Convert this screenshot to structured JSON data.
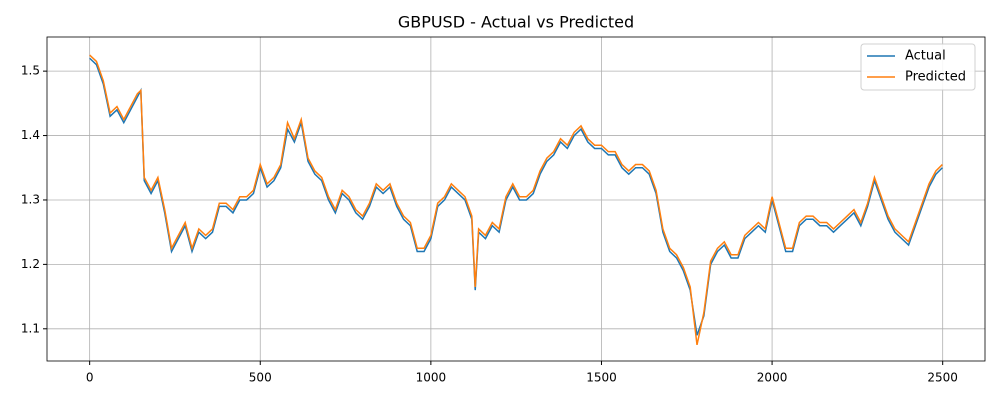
{
  "chart_data": {
    "type": "line",
    "title": "GBPUSD - Actual vs Predicted",
    "x": [
      0,
      20,
      40,
      60,
      80,
      100,
      120,
      140,
      150,
      160,
      180,
      200,
      220,
      240,
      260,
      280,
      300,
      320,
      340,
      360,
      380,
      400,
      420,
      440,
      460,
      480,
      500,
      520,
      540,
      560,
      580,
      600,
      620,
      640,
      660,
      680,
      700,
      720,
      740,
      760,
      780,
      800,
      820,
      840,
      860,
      880,
      900,
      920,
      940,
      960,
      980,
      1000,
      1020,
      1040,
      1060,
      1080,
      1100,
      1120,
      1130,
      1140,
      1160,
      1180,
      1200,
      1220,
      1240,
      1260,
      1280,
      1300,
      1320,
      1340,
      1360,
      1380,
      1400,
      1420,
      1440,
      1460,
      1480,
      1500,
      1520,
      1540,
      1560,
      1580,
      1600,
      1620,
      1640,
      1660,
      1680,
      1700,
      1720,
      1740,
      1760,
      1780,
      1800,
      1820,
      1840,
      1860,
      1880,
      1900,
      1920,
      1940,
      1960,
      1980,
      2000,
      2020,
      2040,
      2060,
      2080,
      2100,
      2120,
      2140,
      2160,
      2180,
      2200,
      2220,
      2240,
      2260,
      2280,
      2300,
      2320,
      2340,
      2360,
      2380,
      2400,
      2420,
      2440,
      2460,
      2480,
      2499
    ],
    "series": [
      {
        "name": "Actual",
        "color": "#1f77b4",
        "values": [
          1.52,
          1.51,
          1.48,
          1.43,
          1.44,
          1.42,
          1.44,
          1.46,
          1.47,
          1.33,
          1.31,
          1.33,
          1.28,
          1.22,
          1.24,
          1.26,
          1.22,
          1.25,
          1.24,
          1.25,
          1.29,
          1.29,
          1.28,
          1.3,
          1.3,
          1.31,
          1.35,
          1.32,
          1.33,
          1.35,
          1.41,
          1.39,
          1.42,
          1.36,
          1.34,
          1.33,
          1.3,
          1.28,
          1.31,
          1.3,
          1.28,
          1.27,
          1.29,
          1.32,
          1.31,
          1.32,
          1.29,
          1.27,
          1.26,
          1.22,
          1.22,
          1.24,
          1.29,
          1.3,
          1.32,
          1.31,
          1.3,
          1.27,
          1.16,
          1.25,
          1.24,
          1.26,
          1.25,
          1.3,
          1.32,
          1.3,
          1.3,
          1.31,
          1.34,
          1.36,
          1.37,
          1.39,
          1.38,
          1.4,
          1.41,
          1.39,
          1.38,
          1.38,
          1.37,
          1.37,
          1.35,
          1.34,
          1.35,
          1.35,
          1.34,
          1.31,
          1.25,
          1.22,
          1.21,
          1.19,
          1.16,
          1.09,
          1.12,
          1.2,
          1.22,
          1.23,
          1.21,
          1.21,
          1.24,
          1.25,
          1.26,
          1.25,
          1.3,
          1.26,
          1.22,
          1.22,
          1.26,
          1.27,
          1.27,
          1.26,
          1.26,
          1.25,
          1.26,
          1.27,
          1.28,
          1.26,
          1.29,
          1.33,
          1.3,
          1.27,
          1.25,
          1.24,
          1.23,
          1.26,
          1.29,
          1.32,
          1.34,
          1.35
        ]
      },
      {
        "name": "Predicted",
        "color": "#ff7f0e",
        "values": [
          1.525,
          1.515,
          1.485,
          1.435,
          1.445,
          1.425,
          1.445,
          1.465,
          1.47,
          1.335,
          1.315,
          1.335,
          1.285,
          1.225,
          1.245,
          1.265,
          1.225,
          1.255,
          1.245,
          1.255,
          1.295,
          1.295,
          1.285,
          1.305,
          1.305,
          1.315,
          1.355,
          1.325,
          1.335,
          1.355,
          1.42,
          1.395,
          1.425,
          1.365,
          1.345,
          1.335,
          1.305,
          1.285,
          1.315,
          1.305,
          1.285,
          1.275,
          1.295,
          1.325,
          1.315,
          1.325,
          1.295,
          1.275,
          1.265,
          1.225,
          1.225,
          1.245,
          1.295,
          1.305,
          1.325,
          1.315,
          1.305,
          1.275,
          1.165,
          1.255,
          1.245,
          1.265,
          1.255,
          1.305,
          1.325,
          1.305,
          1.305,
          1.315,
          1.345,
          1.365,
          1.375,
          1.395,
          1.385,
          1.405,
          1.415,
          1.395,
          1.385,
          1.385,
          1.375,
          1.375,
          1.355,
          1.345,
          1.355,
          1.355,
          1.345,
          1.315,
          1.255,
          1.225,
          1.215,
          1.195,
          1.165,
          1.075,
          1.125,
          1.205,
          1.225,
          1.235,
          1.215,
          1.215,
          1.245,
          1.255,
          1.265,
          1.255,
          1.305,
          1.265,
          1.225,
          1.225,
          1.265,
          1.275,
          1.275,
          1.265,
          1.265,
          1.255,
          1.265,
          1.275,
          1.285,
          1.265,
          1.295,
          1.335,
          1.305,
          1.275,
          1.255,
          1.245,
          1.235,
          1.265,
          1.295,
          1.325,
          1.345,
          1.355
        ]
      }
    ],
    "xlim": [
      -125,
      2624
    ],
    "ylim": [
      1.05,
      1.553
    ],
    "xticks": [
      0,
      500,
      1000,
      1500,
      2000,
      2500
    ],
    "yticks": [
      1.1,
      1.2,
      1.3,
      1.4,
      1.5
    ],
    "grid": true,
    "legend": "upper right"
  }
}
